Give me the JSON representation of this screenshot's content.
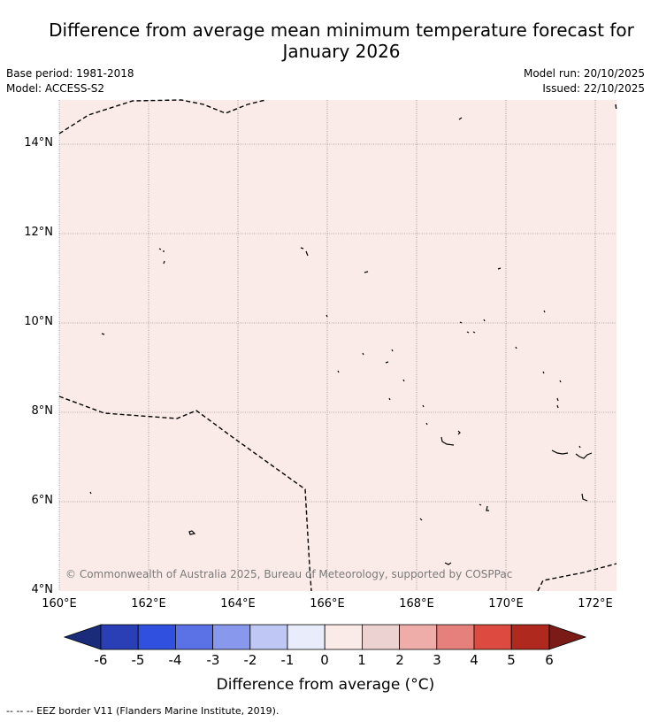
{
  "header": {
    "title_line1": "Difference from average mean minimum temperature forecast for",
    "title_line2": "January 2026",
    "base_period": "Base period: 1981-2018",
    "model": "Model: ACCESS-S2",
    "model_run": "Model run: 20/10/2025",
    "issued": "Issued: 22/10/2025"
  },
  "map": {
    "latitude_labels": [
      "14°N",
      "12°N",
      "10°N",
      "8°N",
      "6°N",
      "4°N"
    ],
    "longitude_labels": [
      "160°E",
      "162°E",
      "164°E",
      "166°E",
      "168°E",
      "170°E",
      "172°E"
    ],
    "copyright": "© Commonwealth of Australia 2025, Bureau of Meteorology, supported by COSPPac",
    "background_color": "#fbebe8",
    "border_color": "#000000"
  },
  "colorbar": {
    "ticks": [
      "-6",
      "-5",
      "-4",
      "-3",
      "-2",
      "-1",
      "0",
      "1",
      "2",
      "3",
      "4",
      "5",
      "6"
    ],
    "colors": [
      "#1a2b7a",
      "#2a3fb5",
      "#3051e0",
      "#5a72e6",
      "#8898ec",
      "#bfc7f4",
      "#e8ecfb",
      "#fbebe8",
      "#ecd3d2",
      "#efadaa",
      "#e6807c",
      "#dc4a40",
      "#b0291f",
      "#7a1b17"
    ],
    "label": "Difference from average (°C)"
  },
  "footer": {
    "text": "--  --  -- EEZ border V11 (Flanders Marine Institute, 2019)."
  }
}
